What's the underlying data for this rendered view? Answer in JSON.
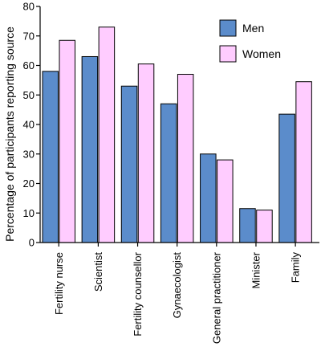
{
  "chart_data": {
    "type": "bar",
    "ylabel": "Percentage of participants reporting source",
    "xlabel": "",
    "ylim": [
      0,
      80
    ],
    "yticks": [
      0,
      10,
      20,
      30,
      40,
      50,
      60,
      70,
      80
    ],
    "grid": false,
    "legend_position": "top-right",
    "categories": [
      "Fertility nurse",
      "Scientist",
      "Fertility counsellor",
      "Gynaecologist",
      "General practitioner",
      "Minister",
      "Family"
    ],
    "series": [
      {
        "name": "Men",
        "color": "#5b8ccb",
        "values": [
          58,
          63,
          53,
          47,
          30,
          11.5,
          43.5
        ]
      },
      {
        "name": "Women",
        "color": "#ffccff",
        "values": [
          68.5,
          73,
          60.5,
          57,
          28,
          11,
          54.5
        ]
      }
    ]
  }
}
